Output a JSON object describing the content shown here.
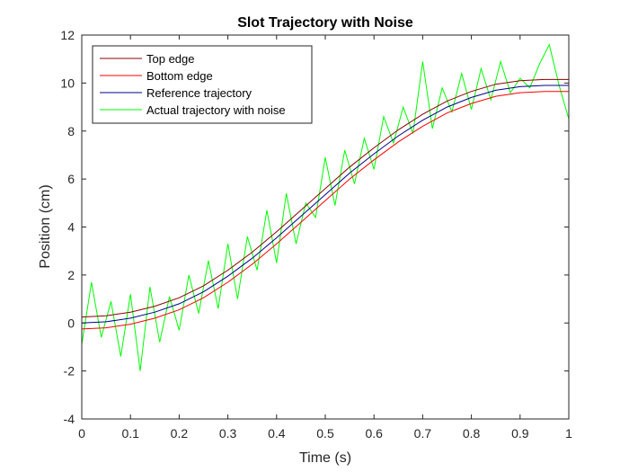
{
  "chart_data": {
    "type": "line",
    "title": "Slot Trajectory with Noise",
    "xlabel": "Time (s)",
    "ylabel": "Position (cm)",
    "xlim": [
      0,
      1
    ],
    "ylim": [
      -4,
      12
    ],
    "xticks": [
      "0",
      "0.1",
      "0.2",
      "0.3",
      "0.4",
      "0.5",
      "0.6",
      "0.7",
      "0.8",
      "0.9",
      "1"
    ],
    "yticks": [
      "-4",
      "-2",
      "0",
      "2",
      "4",
      "6",
      "8",
      "10",
      "12"
    ],
    "grid": false,
    "legend_position": "top-left",
    "series": [
      {
        "name": "Top edge",
        "color": "#8B0000",
        "x": [
          0,
          0.05,
          0.1,
          0.15,
          0.2,
          0.25,
          0.3,
          0.35,
          0.4,
          0.45,
          0.5,
          0.55,
          0.6,
          0.65,
          0.7,
          0.75,
          0.8,
          0.85,
          0.9,
          0.95,
          1
        ],
        "values": [
          0.25,
          0.3,
          0.45,
          0.7,
          1.05,
          1.55,
          2.2,
          2.95,
          3.8,
          4.7,
          5.6,
          6.5,
          7.3,
          8.05,
          8.7,
          9.25,
          9.65,
          9.95,
          10.1,
          10.15,
          10.15
        ]
      },
      {
        "name": "Bottom edge",
        "color": "#FF0000",
        "x": [
          0,
          0.05,
          0.1,
          0.15,
          0.2,
          0.25,
          0.3,
          0.35,
          0.4,
          0.45,
          0.5,
          0.55,
          0.6,
          0.65,
          0.7,
          0.75,
          0.8,
          0.85,
          0.9,
          0.95,
          1
        ],
        "values": [
          -0.25,
          -0.2,
          -0.05,
          0.2,
          0.55,
          1.05,
          1.7,
          2.45,
          3.3,
          4.2,
          5.1,
          6.0,
          6.8,
          7.55,
          8.2,
          8.75,
          9.15,
          9.45,
          9.6,
          9.65,
          9.65
        ]
      },
      {
        "name": "Reference trajectory",
        "color": "#00008B",
        "x": [
          0,
          0.05,
          0.1,
          0.15,
          0.2,
          0.25,
          0.3,
          0.35,
          0.4,
          0.45,
          0.5,
          0.55,
          0.6,
          0.65,
          0.7,
          0.75,
          0.8,
          0.85,
          0.9,
          0.95,
          1
        ],
        "values": [
          0,
          0.05,
          0.2,
          0.45,
          0.8,
          1.3,
          1.95,
          2.7,
          3.55,
          4.45,
          5.35,
          6.25,
          7.05,
          7.8,
          8.45,
          9.0,
          9.4,
          9.7,
          9.85,
          9.9,
          9.9
        ]
      },
      {
        "name": "Actual trajectory with noise",
        "color": "#00FF00",
        "x": [
          0,
          0.02,
          0.04,
          0.06,
          0.08,
          0.1,
          0.12,
          0.14,
          0.16,
          0.18,
          0.2,
          0.22,
          0.24,
          0.26,
          0.28,
          0.3,
          0.32,
          0.34,
          0.36,
          0.38,
          0.4,
          0.42,
          0.44,
          0.46,
          0.48,
          0.5,
          0.52,
          0.54,
          0.56,
          0.58,
          0.6,
          0.62,
          0.64,
          0.66,
          0.68,
          0.7,
          0.72,
          0.74,
          0.76,
          0.78,
          0.8,
          0.82,
          0.84,
          0.86,
          0.88,
          0.9,
          0.92,
          0.94,
          0.96,
          0.98,
          1.0
        ],
        "values": [
          -0.9,
          1.7,
          -0.6,
          0.9,
          -1.4,
          1.2,
          -2.0,
          1.5,
          -0.8,
          1.1,
          -0.3,
          2.0,
          0.4,
          2.6,
          0.6,
          3.3,
          1.0,
          3.6,
          2.2,
          4.7,
          2.5,
          5.4,
          3.3,
          5.0,
          4.4,
          6.9,
          4.9,
          7.2,
          5.8,
          7.7,
          6.4,
          8.6,
          7.5,
          9.0,
          7.9,
          10.9,
          8.1,
          9.8,
          8.8,
          10.4,
          8.9,
          10.6,
          9.3,
          10.9,
          9.6,
          10.2,
          9.8,
          10.8,
          11.6,
          9.9,
          8.5
        ]
      }
    ]
  }
}
